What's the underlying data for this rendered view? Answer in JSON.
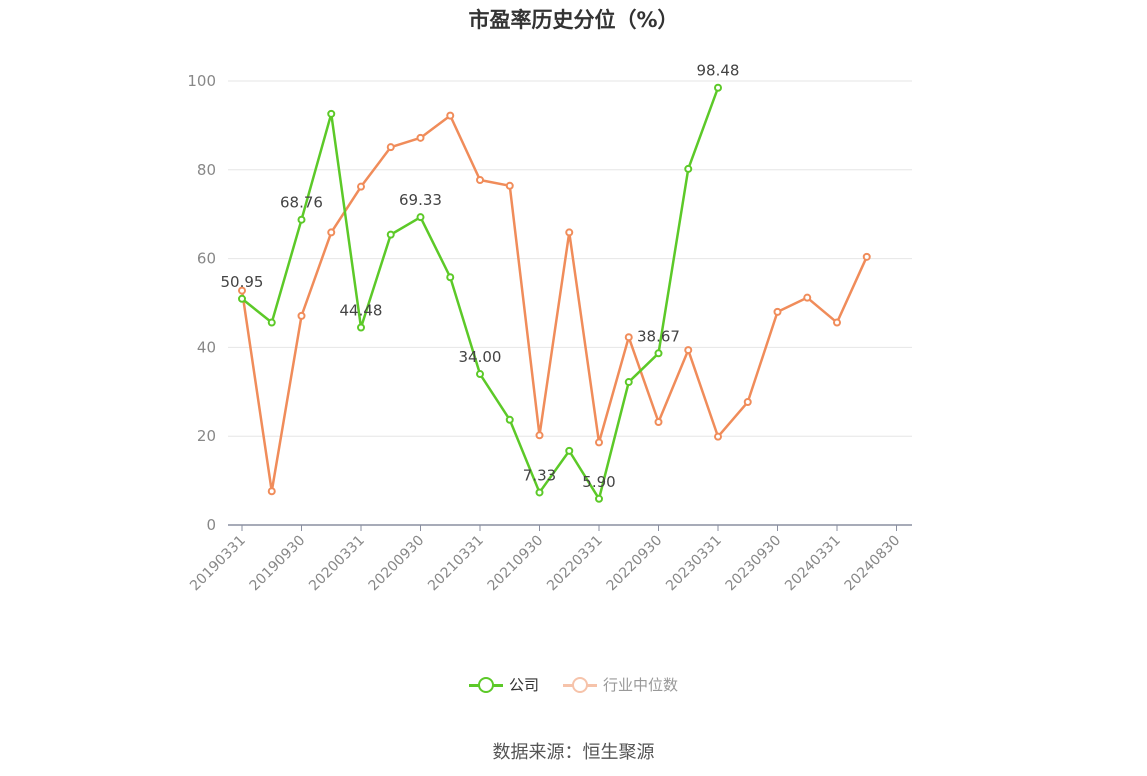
{
  "chart_data": {
    "type": "line",
    "title": "市盈率历史分位（%）",
    "ylim": [
      0,
      100
    ],
    "yticks": [
      0,
      20,
      40,
      60,
      80,
      100
    ],
    "grid": true,
    "legend_position": "bottom",
    "x": [
      "20190331",
      "20190630",
      "20190930",
      "20191231",
      "20200331",
      "20200630",
      "20200930",
      "20201231",
      "20210331",
      "20210630",
      "20210930",
      "20211231",
      "20220331",
      "20220630",
      "20220930",
      "20221231",
      "20230331",
      "20230630",
      "20230930",
      "20231231",
      "20240331",
      "20240630",
      "20240830"
    ],
    "xtick_labels": [
      "20190331",
      "20190930",
      "20200331",
      "20200930",
      "20210331",
      "20210930",
      "20220331",
      "20220930",
      "20230331",
      "20230930",
      "20240331",
      "20240830"
    ],
    "series": [
      {
        "name": "公司",
        "color": "#5cc928",
        "values": [
          50.95,
          45.6,
          68.76,
          92.6,
          44.48,
          65.4,
          69.33,
          55.8,
          34.0,
          23.7,
          7.33,
          16.7,
          5.9,
          32.2,
          38.67,
          80.2,
          98.48,
          null,
          null,
          null,
          null,
          null,
          null
        ],
        "labels": {
          "0": "50.95",
          "2": "68.76",
          "4": "44.48",
          "6": "69.33",
          "8": "34.00",
          "10": "7.33",
          "12": "5.90",
          "14": "38.67",
          "16": "98.48"
        }
      },
      {
        "name": "行业中位数",
        "color": "#f08c5a",
        "values": [
          52.8,
          7.6,
          47.1,
          65.9,
          76.2,
          85.1,
          87.2,
          92.2,
          77.7,
          76.4,
          20.2,
          65.9,
          18.6,
          42.3,
          23.2,
          39.4,
          19.9,
          27.7,
          48.0,
          51.2,
          45.6,
          60.4,
          null
        ]
      }
    ]
  },
  "source_text": "数据来源：恒生聚源"
}
